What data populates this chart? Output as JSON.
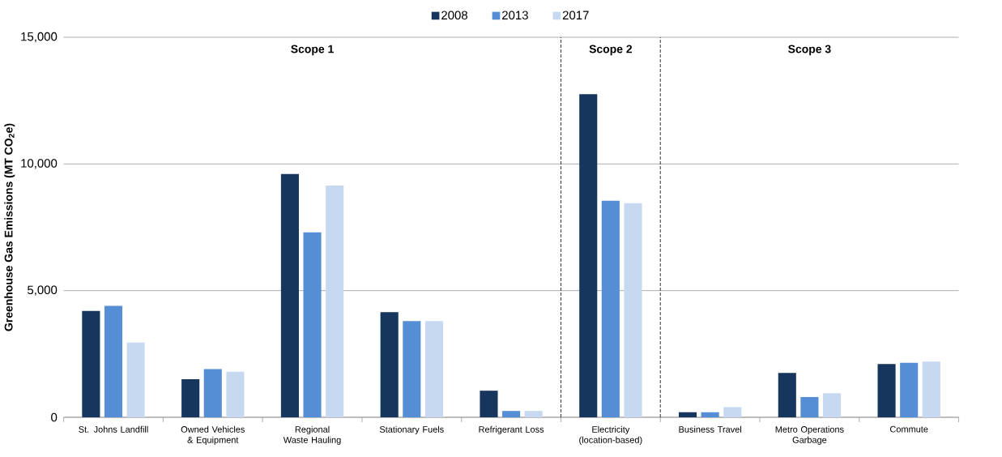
{
  "chart_data": {
    "type": "bar",
    "ylabel": "Greenhouse Gas Emissions (MT CO$_{2}$e)",
    "categories": [
      "St. Johns Landfill",
      "Owned Vehicles & Equipment",
      "Regional Waste Hauling",
      "Stationary Fuels",
      "Refrigerant Loss",
      "Electricity (location-based)",
      "Business Travel",
      "Metro Operations Garbage",
      "Commute"
    ],
    "series": [
      {
        "name": "2008",
        "color": "#17365d",
        "values": [
          4200,
          1500,
          9600,
          4150,
          1050,
          12750,
          200,
          1750,
          2100
        ]
      },
      {
        "name": "2013",
        "color": "#558ed5",
        "values": [
          4400,
          1900,
          7300,
          3800,
          250,
          8550,
          200,
          800,
          2150
        ]
      },
      {
        "name": "2017",
        "color": "#c6d9f1",
        "values": [
          2950,
          1800,
          9150,
          3800,
          250,
          8450,
          400,
          950,
          2200
        ]
      }
    ],
    "ylim": [
      0,
      15000
    ],
    "yticks": [
      0,
      {
        "value": 5000,
        "label": "5,000"
      },
      {
        "value": 10000,
        "label": "10,000"
      },
      {
        "value": 15000,
        "label": "15,000"
      }
    ],
    "grid": "y",
    "legend": "top",
    "annotations": [
      "Scope 1",
      "Scope 2",
      "Scope 3"
    ]
  }
}
